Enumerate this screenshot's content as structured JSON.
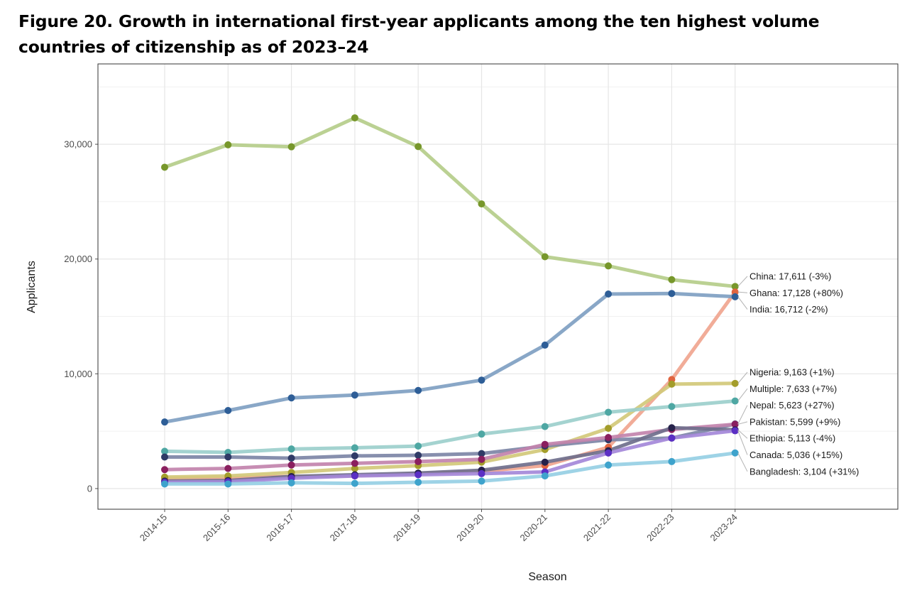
{
  "figure": {
    "title": "Figure 20. Growth in international first-year applicants among the ten highest volume countries of citizenship as of 2023–24"
  },
  "chart_data": {
    "type": "line",
    "title": "Figure 20. Growth in international first-year applicants among the ten highest volume countries of citizenship as of 2023–24",
    "xlabel": "Season",
    "ylabel": "Applicants",
    "ylim": [
      -1800,
      37000
    ],
    "yticks": [
      0,
      10000,
      20000,
      30000
    ],
    "ytick_labels": [
      "0",
      "10,000",
      "20,000",
      "30,000"
    ],
    "grid": true,
    "categories": [
      "2014-15",
      "2015-16",
      "2016-17",
      "2017-18",
      "2018-19",
      "2019-20",
      "2020-21",
      "2021-22",
      "2022-23",
      "2023-24"
    ],
    "series": [
      {
        "name": "China",
        "label": "China: 17,611 (-3%)",
        "line_color": "#b5cd8a",
        "point_color": "#77972b",
        "values": [
          28000,
          29950,
          29780,
          32300,
          29800,
          24800,
          20200,
          19400,
          18200,
          17611
        ]
      },
      {
        "name": "Ghana",
        "label": "Ghana: 17,128 (+80%)",
        "line_color": "#f0a58f",
        "point_color": "#e0643f",
        "values": [
          900,
          950,
          1050,
          1100,
          1300,
          1500,
          2000,
          3600,
          9500,
          17128
        ]
      },
      {
        "name": "India",
        "label": "India: 16,712 (-2%)",
        "line_color": "#7fa0c2",
        "point_color": "#2e5e97",
        "values": [
          5800,
          6800,
          7900,
          8150,
          8550,
          9450,
          12500,
          16950,
          17000,
          16712
        ]
      },
      {
        "name": "Nigeria",
        "label": "Nigeria: 9,163 (+1%)",
        "line_color": "#d3c97a",
        "point_color": "#a39d2b",
        "values": [
          1000,
          1100,
          1400,
          1750,
          2000,
          2300,
          3400,
          5250,
          9100,
          9163
        ]
      },
      {
        "name": "Multiple",
        "label": "Multiple: 7,633 (+7%)",
        "line_color": "#9ccfcc",
        "point_color": "#4ea7a3",
        "values": [
          3250,
          3150,
          3450,
          3550,
          3700,
          4750,
          5400,
          6650,
          7150,
          7633
        ]
      },
      {
        "name": "Nepal",
        "label": "Nepal: 5,623 (+27%)",
        "line_color": "#7d86a6",
        "point_color": "#2f3a66",
        "values": [
          2750,
          2750,
          2650,
          2850,
          2900,
          3050,
          3700,
          4250,
          4400,
          5623
        ]
      },
      {
        "name": "Pakistan",
        "label": "Pakistan: 5,599 (+9%)",
        "line_color": "#c283ad",
        "point_color": "#8a1f5f",
        "values": [
          1650,
          1750,
          2050,
          2200,
          2350,
          2550,
          3850,
          4450,
          5150,
          5599
        ]
      },
      {
        "name": "Ethiopia",
        "label": "Ethiopia: 5,113 (-4%)",
        "line_color": "#6f6f8c",
        "point_color": "#25214a",
        "values": [
          650,
          700,
          1050,
          1200,
          1350,
          1600,
          2300,
          3300,
          5300,
          5113
        ]
      },
      {
        "name": "Canada",
        "label": "Canada: 5,036 (+15%)",
        "line_color": "#a488d9",
        "point_color": "#5b2fc4",
        "values": [
          550,
          600,
          900,
          1100,
          1200,
          1300,
          1450,
          3100,
          4400,
          5036
        ]
      },
      {
        "name": "Bangladesh",
        "label": "Bangladesh: 3,104 (+31%)",
        "line_color": "#96cfe4",
        "point_color": "#3ea3cc",
        "values": [
          400,
          400,
          500,
          450,
          550,
          650,
          1100,
          2050,
          2350,
          3104
        ]
      }
    ],
    "label_order": [
      "China",
      "Ghana",
      "India",
      "Nigeria",
      "Multiple",
      "Nepal",
      "Pakistan",
      "Ethiopia",
      "Canada",
      "Bangladesh"
    ]
  }
}
